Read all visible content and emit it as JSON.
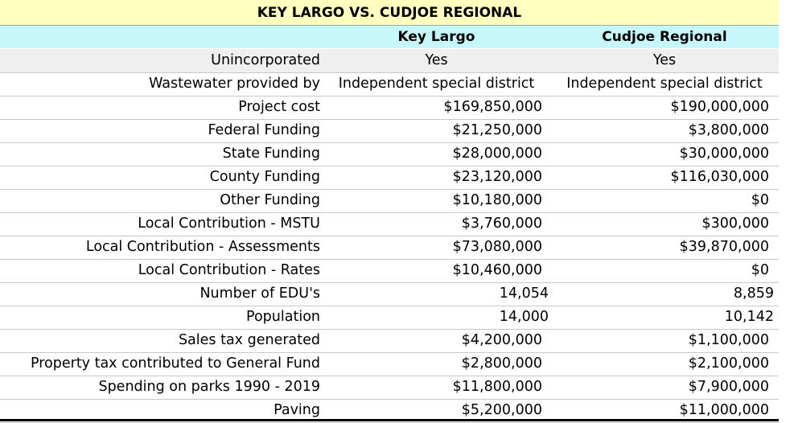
{
  "table": {
    "title": "KEY LARGO VS. CUDJOE REGIONAL",
    "columns": [
      "Key Largo",
      "Cudjoe Regional"
    ],
    "rows": [
      {
        "label": "Unincorporated",
        "key_largo": "Yes",
        "cudjoe": "Yes"
      },
      {
        "label": "Wastewater provided by",
        "key_largo": "Independent special district",
        "cudjoe": "Independent special district"
      },
      {
        "label": "Project cost",
        "key_largo": "$169,850,000",
        "cudjoe": "$190,000,000"
      },
      {
        "label": "Federal Funding",
        "key_largo": "$21,250,000",
        "cudjoe": "$3,800,000"
      },
      {
        "label": "State Funding",
        "key_largo": "$28,000,000",
        "cudjoe": "$30,000,000"
      },
      {
        "label": "County Funding",
        "key_largo": "$23,120,000",
        "cudjoe": "$116,030,000"
      },
      {
        "label": "Other Funding",
        "key_largo": "$10,180,000",
        "cudjoe": "$0"
      },
      {
        "label": "Local Contribution - MSTU",
        "key_largo": "$3,760,000",
        "cudjoe": "$300,000"
      },
      {
        "label": "Local Contribution - Assessments",
        "key_largo": "$73,080,000",
        "cudjoe": "$39,870,000"
      },
      {
        "label": "Local Contribution - Rates",
        "key_largo": "$10,460,000",
        "cudjoe": "$0"
      },
      {
        "label": "Number of EDU's",
        "key_largo": "14,054",
        "cudjoe": "8,859"
      },
      {
        "label": "Population",
        "key_largo": "14,000",
        "cudjoe": "10,142"
      },
      {
        "label": "Sales tax generated",
        "key_largo": "$4,200,000",
        "cudjoe": "$1,100,000"
      },
      {
        "label": "Property tax contributed to General Fund",
        "key_largo": "$2,800,000",
        "cudjoe": "$2,100,000"
      },
      {
        "label": "Spending on parks 1990 - 2019",
        "key_largo": "$11,800,000",
        "cudjoe": "$7,900,000"
      },
      {
        "label": "Paving",
        "key_largo": "$5,200,000",
        "cudjoe": "$11,000,000"
      }
    ]
  },
  "colors": {
    "title_bg": "#ffffc0",
    "header_bg": "#c5f7fb",
    "shaded_row_bg": "#efefef"
  }
}
